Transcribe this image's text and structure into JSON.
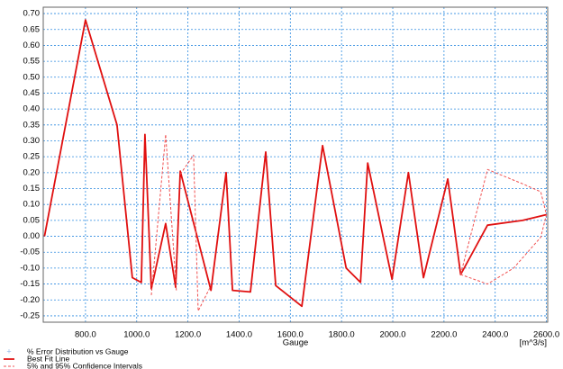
{
  "chart_data": {
    "type": "line",
    "x_label": "Gauge",
    "x_unit": "[m^3/s]",
    "xlim": [
      635,
      2605
    ],
    "ylim": [
      -0.27,
      0.72
    ],
    "xticks": [
      {
        "value": 800,
        "label": "800.0"
      },
      {
        "value": 1000,
        "label": "1000.0"
      },
      {
        "value": 1200,
        "label": "1200.0"
      },
      {
        "value": 1400,
        "label": "1400.0"
      },
      {
        "value": 1600,
        "label": "1600.0"
      },
      {
        "value": 1800,
        "label": "1800.0"
      },
      {
        "value": 2000,
        "label": "2000.0"
      },
      {
        "value": 2200,
        "label": "2200.0"
      },
      {
        "value": 2400,
        "label": "2400.0"
      },
      {
        "value": 2600,
        "label": "2600.0"
      }
    ],
    "yticks": [
      {
        "value": 0.7,
        "label": "0.70"
      },
      {
        "value": 0.65,
        "label": "0.65"
      },
      {
        "value": 0.6,
        "label": "0.60"
      },
      {
        "value": 0.55,
        "label": "0.55"
      },
      {
        "value": 0.5,
        "label": "0.50"
      },
      {
        "value": 0.45,
        "label": "0.45"
      },
      {
        "value": 0.4,
        "label": "0.40"
      },
      {
        "value": 0.35,
        "label": "0.35"
      },
      {
        "value": 0.3,
        "label": "0.30"
      },
      {
        "value": 0.25,
        "label": "0.25"
      },
      {
        "value": 0.2,
        "label": "0.20"
      },
      {
        "value": 0.15,
        "label": "0.15"
      },
      {
        "value": 0.1,
        "label": "0.10"
      },
      {
        "value": 0.05,
        "label": "0.05"
      },
      {
        "value": 0,
        "label": "0.00"
      },
      {
        "value": -0.05,
        "label": "-0.05"
      },
      {
        "value": -0.1,
        "label": "-0.10"
      },
      {
        "value": -0.15,
        "label": "-0.15"
      },
      {
        "value": -0.2,
        "label": "-0.20"
      },
      {
        "value": -0.25,
        "label": "-0.25"
      }
    ],
    "grid": true,
    "grid_color": "#2e8be0",
    "series": [
      {
        "name": "% Error Distribution vs Gauge",
        "color": "#8fb8e8",
        "dash": false,
        "x": [],
        "values": []
      },
      {
        "name": "Best Fit Line",
        "color": "#e01010",
        "dash": false,
        "x": [
          640,
          800,
          923,
          983,
          1018,
          1032,
          1057,
          1113,
          1152,
          1170,
          1290,
          1349,
          1374,
          1444,
          1504,
          1543,
          1645,
          1726,
          1818,
          1874,
          1902,
          1997,
          2061,
          2120,
          2215,
          2265,
          2370,
          2507,
          2600
        ],
        "values": [
          0.0,
          0.68,
          0.35,
          -0.13,
          -0.145,
          0.32,
          -0.165,
          0.04,
          -0.16,
          0.205,
          -0.17,
          0.2,
          -0.17,
          -0.175,
          0.265,
          -0.155,
          -0.22,
          0.285,
          -0.1,
          -0.145,
          0.23,
          -0.135,
          0.2,
          -0.13,
          0.18,
          -0.12,
          0.035,
          0.05,
          0.068
        ]
      },
      {
        "name": "5% and 95% Confidence Intervals",
        "color": "#f05050",
        "dash": true,
        "x": [
          1057,
          1113,
          1155,
          null,
          1170,
          1222,
          1240,
          1290,
          null,
          2265,
          2370,
          2507,
          2578,
          2600,
          2578,
          2472,
          2370,
          2265
        ],
        "values": [
          -0.185,
          0.32,
          -0.17,
          null,
          0.195,
          0.255,
          -0.235,
          -0.155,
          null,
          -0.12,
          0.21,
          0.165,
          0.14,
          0.068,
          -0.003,
          -0.1,
          -0.15,
          -0.12
        ]
      }
    ]
  }
}
